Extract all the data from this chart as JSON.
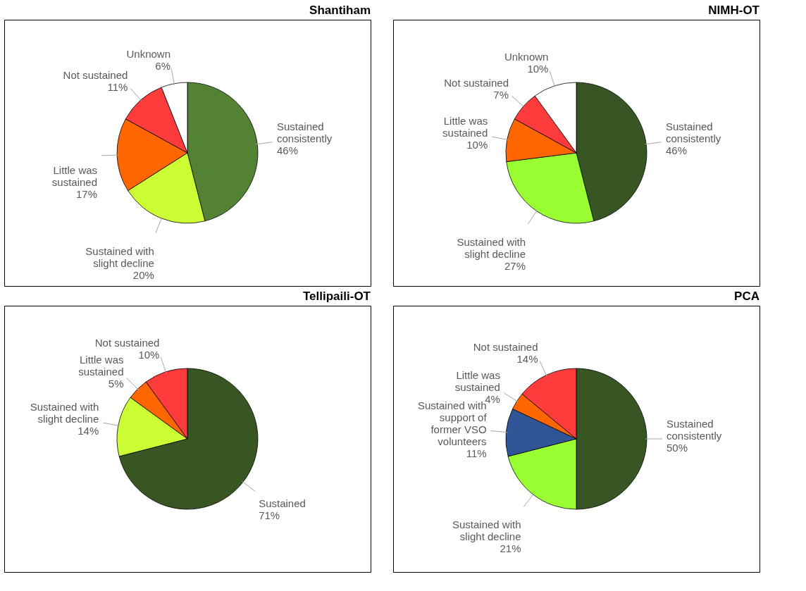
{
  "chart_data": [
    {
      "type": "pie",
      "title": "Shantiham",
      "categories": [
        "Sustained consistently",
        "Sustained with slight decline",
        "Little was sustained",
        "Not sustained",
        "Unknown"
      ],
      "values": [
        46,
        20,
        17,
        11,
        6
      ],
      "value_labels": [
        "46%",
        "20%",
        "17%",
        "11%",
        "6%"
      ],
      "colors": [
        "#548235",
        "#ccff33",
        "#ff6600",
        "#ff3b3b",
        "#ffffff"
      ]
    },
    {
      "type": "pie",
      "title": "NIMH-OT",
      "categories": [
        "Sustained consistently",
        "Sustained with slight decline",
        "Little was sustained",
        "Not sustained",
        "Unknown"
      ],
      "values": [
        46,
        27,
        10,
        7,
        10
      ],
      "value_labels": [
        "46%",
        "27%",
        "10%",
        "7%",
        "10%"
      ],
      "colors": [
        "#375623",
        "#99ff33",
        "#ff6600",
        "#ff3b3b",
        "#ffffff"
      ]
    },
    {
      "type": "pie",
      "title": "Tellipaili-OT",
      "categories": [
        "Sustained",
        "Sustained with slight decline",
        "Little was sustained",
        "Not sustained"
      ],
      "values": [
        71,
        14,
        5,
        10
      ],
      "value_labels": [
        "71%",
        "14%",
        "5%",
        "10%"
      ],
      "colors": [
        "#375623",
        "#ccff33",
        "#ff6600",
        "#ff3b3b"
      ]
    },
    {
      "type": "pie",
      "title": "PCA",
      "categories": [
        "Sustained consistently",
        "Sustained with slight decline",
        "Sustained with support of former VSO volunteers",
        "Little was sustained",
        "Not sustained"
      ],
      "values": [
        50,
        21,
        11,
        4,
        14
      ],
      "value_labels": [
        "50%",
        "21%",
        "11%",
        "4%",
        "14%"
      ],
      "colors": [
        "#375623",
        "#99ff33",
        "#2f5597",
        "#ff6600",
        "#ff3b3b"
      ]
    }
  ]
}
